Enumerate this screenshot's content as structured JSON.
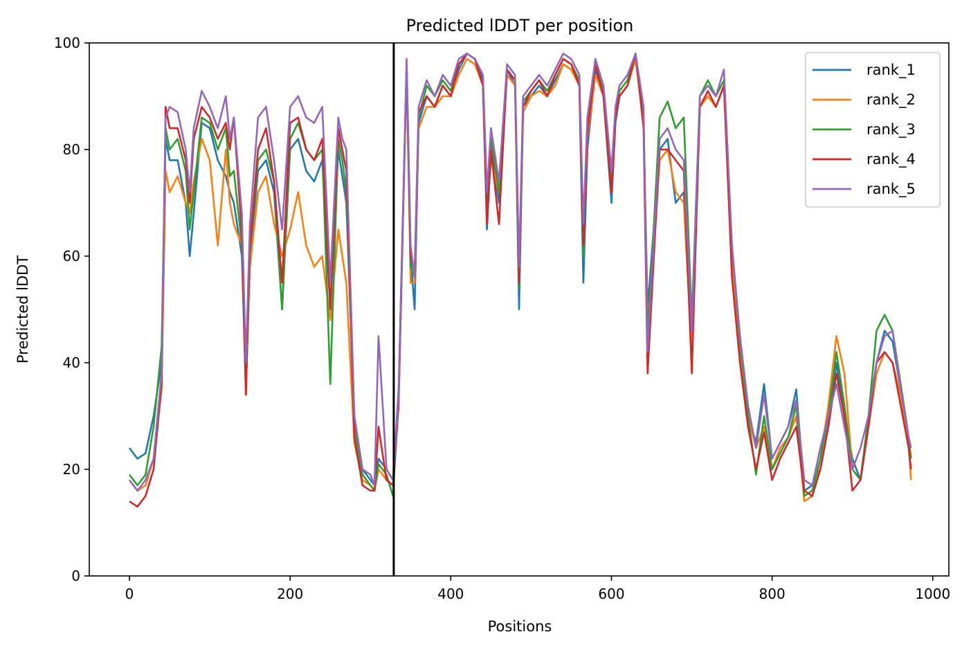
{
  "chart_data": {
    "type": "line",
    "title": "Predicted lDDT per position",
    "xlabel": "Positions",
    "ylabel": "Predicted lDDT",
    "xlim": [
      -50,
      1020
    ],
    "ylim": [
      0,
      100
    ],
    "xticks": [
      0,
      200,
      400,
      600,
      800,
      1000
    ],
    "yticks": [
      0,
      20,
      40,
      60,
      80,
      100
    ],
    "vline_x": 329,
    "legend_position": "top-right",
    "grid": false,
    "series": [
      {
        "name": "rank_1",
        "color": "#1f77b4",
        "x": [
          0,
          10,
          20,
          30,
          40,
          45,
          50,
          60,
          70,
          75,
          80,
          90,
          100,
          110,
          120,
          125,
          130,
          140,
          145,
          150,
          160,
          170,
          180,
          190,
          200,
          210,
          220,
          230,
          240,
          250,
          260,
          265,
          270,
          280,
          290,
          300,
          305,
          310,
          320,
          328,
          335,
          345,
          350,
          355,
          360,
          370,
          380,
          390,
          400,
          410,
          420,
          430,
          440,
          445,
          450,
          460,
          470,
          480,
          485,
          490,
          500,
          510,
          520,
          530,
          540,
          550,
          560,
          565,
          570,
          580,
          590,
          600,
          605,
          610,
          620,
          630,
          640,
          645,
          650,
          660,
          670,
          680,
          690,
          700,
          710,
          720,
          730,
          740,
          750,
          760,
          770,
          780,
          790,
          800,
          810,
          820,
          830,
          840,
          850,
          860,
          870,
          880,
          890,
          900,
          910,
          920,
          930,
          940,
          950,
          960,
          970,
          973
        ],
        "y": [
          24,
          22,
          23,
          30,
          40,
          82,
          78,
          78,
          70,
          60,
          68,
          85,
          84,
          78,
          75,
          72,
          70,
          60,
          35,
          60,
          76,
          78,
          72,
          50,
          80,
          82,
          76,
          74,
          78,
          50,
          80,
          75,
          70,
          30,
          20,
          18,
          17,
          22,
          20,
          18,
          35,
          95,
          60,
          50,
          85,
          90,
          88,
          92,
          90,
          95,
          98,
          97,
          93,
          65,
          80,
          70,
          95,
          92,
          50,
          88,
          90,
          92,
          90,
          93,
          96,
          95,
          92,
          55,
          80,
          95,
          90,
          70,
          85,
          90,
          92,
          98,
          85,
          50,
          60,
          80,
          82,
          70,
          72,
          45,
          88,
          90,
          88,
          92,
          60,
          45,
          30,
          25,
          36,
          22,
          25,
          28,
          35,
          16,
          17,
          20,
          28,
          40,
          30,
          22,
          18,
          30,
          40,
          46,
          44,
          35,
          25,
          22
        ]
      },
      {
        "name": "rank_2",
        "color": "#ff7f0e",
        "x": [
          0,
          10,
          20,
          30,
          40,
          45,
          50,
          60,
          70,
          75,
          80,
          90,
          100,
          110,
          120,
          125,
          130,
          140,
          145,
          150,
          160,
          170,
          180,
          190,
          200,
          210,
          220,
          230,
          240,
          250,
          260,
          265,
          270,
          280,
          290,
          300,
          305,
          310,
          320,
          328,
          335,
          345,
          350,
          355,
          360,
          370,
          380,
          390,
          400,
          410,
          420,
          430,
          440,
          445,
          450,
          460,
          470,
          480,
          485,
          490,
          500,
          510,
          520,
          530,
          540,
          550,
          560,
          565,
          570,
          580,
          590,
          600,
          605,
          610,
          620,
          630,
          640,
          645,
          650,
          660,
          670,
          680,
          690,
          700,
          710,
          720,
          730,
          740,
          750,
          760,
          770,
          780,
          790,
          800,
          810,
          820,
          830,
          840,
          850,
          860,
          870,
          880,
          890,
          900,
          910,
          920,
          930,
          940,
          950,
          960,
          970,
          973
        ],
        "y": [
          18,
          16,
          17,
          22,
          35,
          76,
          72,
          75,
          70,
          68,
          74,
          82,
          78,
          62,
          80,
          70,
          66,
          62,
          36,
          58,
          72,
          75,
          66,
          60,
          65,
          72,
          62,
          58,
          60,
          48,
          65,
          60,
          55,
          25,
          18,
          17,
          16,
          20,
          18,
          17,
          32,
          95,
          55,
          55,
          84,
          88,
          88,
          90,
          90,
          94,
          97,
          96,
          92,
          68,
          78,
          72,
          94,
          92,
          55,
          87,
          90,
          91,
          90,
          92,
          96,
          95,
          92,
          62,
          82,
          94,
          90,
          72,
          86,
          90,
          92,
          97,
          85,
          48,
          55,
          78,
          80,
          72,
          70,
          42,
          88,
          90,
          88,
          92,
          58,
          42,
          30,
          24,
          28,
          20,
          24,
          26,
          30,
          14,
          15,
          22,
          32,
          45,
          38,
          20,
          18,
          28,
          38,
          42,
          40,
          34,
          24,
          18
        ]
      },
      {
        "name": "rank_3",
        "color": "#2ca02c",
        "x": [
          0,
          10,
          20,
          30,
          40,
          45,
          50,
          60,
          70,
          75,
          80,
          90,
          100,
          110,
          120,
          125,
          130,
          140,
          145,
          150,
          160,
          170,
          180,
          190,
          200,
          210,
          220,
          230,
          240,
          250,
          260,
          265,
          270,
          280,
          290,
          300,
          305,
          310,
          320,
          328,
          335,
          345,
          350,
          355,
          360,
          370,
          380,
          390,
          400,
          410,
          420,
          430,
          440,
          445,
          450,
          460,
          470,
          480,
          485,
          490,
          500,
          510,
          520,
          530,
          540,
          550,
          560,
          565,
          570,
          580,
          590,
          600,
          605,
          610,
          620,
          630,
          640,
          645,
          650,
          660,
          670,
          680,
          690,
          700,
          710,
          720,
          730,
          740,
          750,
          760,
          770,
          780,
          790,
          800,
          810,
          820,
          830,
          840,
          850,
          860,
          870,
          880,
          890,
          900,
          910,
          920,
          930,
          940,
          950,
          960,
          970,
          973
        ],
        "y": [
          19,
          17,
          19,
          28,
          43,
          84,
          80,
          82,
          76,
          65,
          72,
          86,
          85,
          80,
          84,
          75,
          76,
          62,
          34,
          62,
          78,
          80,
          74,
          50,
          82,
          85,
          80,
          78,
          80,
          36,
          82,
          78,
          72,
          28,
          19,
          17,
          16,
          21,
          19,
          15,
          33,
          96,
          58,
          56,
          86,
          92,
          90,
          93,
          91,
          96,
          98,
          97,
          92,
          70,
          82,
          72,
          95,
          93,
          54,
          89,
          91,
          93,
          91,
          94,
          97,
          96,
          93,
          60,
          84,
          96,
          91,
          73,
          87,
          91,
          93,
          98,
          86,
          45,
          58,
          86,
          89,
          84,
          86,
          48,
          90,
          93,
          90,
          93,
          62,
          44,
          30,
          19,
          30,
          20,
          23,
          26,
          32,
          15,
          16,
          22,
          30,
          42,
          32,
          20,
          18,
          30,
          46,
          49,
          46,
          36,
          26,
          22
        ]
      },
      {
        "name": "rank_4",
        "color": "#d62728",
        "x": [
          0,
          10,
          20,
          30,
          40,
          45,
          50,
          60,
          70,
          75,
          80,
          90,
          100,
          110,
          120,
          125,
          130,
          140,
          145,
          150,
          160,
          170,
          180,
          190,
          200,
          210,
          220,
          230,
          240,
          250,
          260,
          265,
          270,
          280,
          290,
          300,
          305,
          310,
          320,
          328,
          335,
          345,
          350,
          355,
          360,
          370,
          380,
          390,
          400,
          410,
          420,
          430,
          440,
          445,
          450,
          460,
          470,
          480,
          485,
          490,
          500,
          510,
          520,
          530,
          540,
          550,
          560,
          565,
          570,
          580,
          590,
          600,
          605,
          610,
          620,
          630,
          640,
          645,
          650,
          660,
          670,
          680,
          690,
          700,
          710,
          720,
          730,
          740,
          750,
          760,
          770,
          780,
          790,
          800,
          810,
          820,
          830,
          840,
          850,
          860,
          870,
          880,
          890,
          900,
          910,
          920,
          930,
          940,
          950,
          960,
          970,
          973
        ],
        "y": [
          14,
          13,
          15,
          20,
          36,
          88,
          84,
          84,
          78,
          70,
          82,
          88,
          86,
          82,
          85,
          80,
          86,
          64,
          34,
          62,
          80,
          84,
          74,
          55,
          85,
          86,
          80,
          78,
          82,
          50,
          84,
          80,
          76,
          26,
          17,
          16,
          16,
          28,
          18,
          17,
          32,
          96,
          60,
          57,
          87,
          90,
          88,
          92,
          90,
          96,
          98,
          97,
          92,
          66,
          80,
          66,
          95,
          93,
          55,
          88,
          91,
          93,
          90,
          94,
          97,
          96,
          92,
          62,
          83,
          96,
          90,
          72,
          86,
          90,
          92,
          98,
          84,
          38,
          52,
          80,
          80,
          78,
          76,
          38,
          88,
          91,
          88,
          92,
          56,
          40,
          28,
          20,
          27,
          18,
          22,
          25,
          28,
          16,
          15,
          20,
          28,
          38,
          30,
          16,
          18,
          28,
          40,
          42,
          40,
          32,
          24,
          20
        ]
      },
      {
        "name": "rank_5",
        "color": "#9467bd",
        "x": [
          0,
          10,
          20,
          30,
          40,
          45,
          50,
          60,
          70,
          75,
          80,
          90,
          100,
          110,
          120,
          125,
          130,
          140,
          145,
          150,
          160,
          170,
          180,
          190,
          200,
          210,
          220,
          230,
          240,
          250,
          260,
          265,
          270,
          280,
          290,
          300,
          305,
          310,
          320,
          328,
          335,
          345,
          350,
          355,
          360,
          370,
          380,
          390,
          400,
          410,
          420,
          430,
          440,
          445,
          450,
          460,
          470,
          480,
          485,
          490,
          500,
          510,
          520,
          530,
          540,
          550,
          560,
          565,
          570,
          580,
          590,
          600,
          605,
          610,
          620,
          630,
          640,
          645,
          650,
          660,
          670,
          680,
          690,
          700,
          710,
          720,
          730,
          740,
          750,
          760,
          770,
          780,
          790,
          800,
          810,
          820,
          830,
          840,
          850,
          860,
          870,
          880,
          890,
          900,
          910,
          920,
          930,
          940,
          950,
          960,
          970,
          973
        ],
        "y": [
          18,
          16,
          18,
          22,
          38,
          86,
          88,
          87,
          80,
          72,
          84,
          91,
          88,
          84,
          90,
          82,
          86,
          68,
          40,
          66,
          86,
          88,
          78,
          65,
          88,
          90,
          86,
          85,
          88,
          55,
          86,
          82,
          80,
          30,
          20,
          19,
          17,
          45,
          20,
          18,
          34,
          97,
          62,
          56,
          88,
          93,
          90,
          94,
          92,
          97,
          98,
          97,
          94,
          72,
          84,
          74,
          96,
          94,
          58,
          90,
          92,
          94,
          92,
          95,
          98,
          97,
          94,
          66,
          86,
          97,
          92,
          76,
          88,
          92,
          94,
          98,
          88,
          42,
          56,
          82,
          84,
          80,
          78,
          46,
          90,
          92,
          90,
          95,
          62,
          45,
          32,
          24,
          34,
          22,
          25,
          28,
          33,
          18,
          17,
          24,
          30,
          36,
          28,
          20,
          24,
          30,
          40,
          45,
          46,
          35,
          26,
          24
        ]
      }
    ]
  }
}
